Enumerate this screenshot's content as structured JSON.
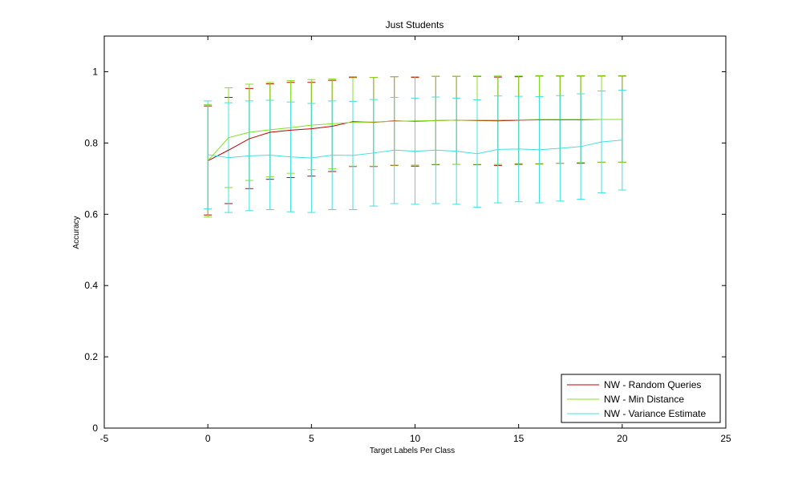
{
  "chart_data": {
    "type": "line",
    "title": "Just Students",
    "xlabel": "Target Labels Per Class",
    "ylabel": "Accuracy",
    "xlim": [
      -5,
      25
    ],
    "ylim": [
      0,
      1.1
    ],
    "xticks": [
      -5,
      0,
      5,
      10,
      15,
      20,
      25
    ],
    "yticks": [
      0,
      0.2,
      0.4,
      0.6,
      0.8,
      1
    ],
    "xtick_labels": [
      "-5",
      "0",
      "5",
      "10",
      "15",
      "20",
      "25"
    ],
    "ytick_labels": [
      "0",
      "0.2",
      "0.4",
      "0.6",
      "0.8",
      "1"
    ],
    "grid": false,
    "legend_position": "bottom-right",
    "x": [
      0,
      1,
      2,
      3,
      4,
      5,
      6,
      7,
      8,
      9,
      10,
      11,
      12,
      13,
      14,
      15,
      16,
      17,
      18,
      19,
      20
    ],
    "series": [
      {
        "name": "NW - Random Queries",
        "color": "#c00000",
        "values": [
          0.75,
          0.78,
          0.812,
          0.83,
          0.836,
          0.84,
          0.847,
          0.86,
          0.858,
          0.862,
          0.861,
          0.863,
          0.864,
          0.863,
          0.862,
          0.864,
          0.865,
          0.865,
          0.865,
          0.866,
          0.866
        ],
        "lower": [
          0.598,
          0.63,
          0.672,
          0.698,
          0.703,
          0.707,
          0.72,
          0.734,
          0.734,
          0.737,
          0.735,
          0.739,
          0.74,
          0.739,
          0.737,
          0.74,
          0.741,
          0.743,
          0.743,
          0.746,
          0.746
        ],
        "upper": [
          0.904,
          0.928,
          0.953,
          0.966,
          0.97,
          0.97,
          0.976,
          0.985,
          0.984,
          0.986,
          0.984,
          0.987,
          0.987,
          0.987,
          0.985,
          0.986,
          0.988,
          0.988,
          0.988,
          0.988,
          0.988
        ]
      },
      {
        "name": "NW - Min Distance",
        "color": "#80e020",
        "values": [
          0.75,
          0.815,
          0.83,
          0.837,
          0.843,
          0.85,
          0.854,
          0.858,
          0.859,
          0.861,
          0.862,
          0.863,
          0.864,
          0.864,
          0.864,
          0.865,
          0.866,
          0.866,
          0.866,
          0.866,
          0.866
        ],
        "lower": [
          0.592,
          0.675,
          0.695,
          0.705,
          0.715,
          0.725,
          0.728,
          0.735,
          0.735,
          0.738,
          0.738,
          0.74,
          0.74,
          0.74,
          0.74,
          0.742,
          0.742,
          0.743,
          0.745,
          0.746,
          0.746
        ],
        "upper": [
          0.908,
          0.955,
          0.965,
          0.97,
          0.975,
          0.978,
          0.98,
          0.983,
          0.984,
          0.986,
          0.986,
          0.987,
          0.987,
          0.988,
          0.988,
          0.988,
          0.989,
          0.989,
          0.989,
          0.989,
          0.989
        ]
      },
      {
        "name": "NW - Variance Estimate",
        "color": "#40e0e0",
        "values": [
          0.767,
          0.759,
          0.764,
          0.766,
          0.761,
          0.758,
          0.766,
          0.765,
          0.772,
          0.78,
          0.777,
          0.78,
          0.777,
          0.77,
          0.782,
          0.783,
          0.781,
          0.785,
          0.79,
          0.803,
          0.808
        ],
        "lower": [
          0.615,
          0.605,
          0.61,
          0.613,
          0.607,
          0.605,
          0.613,
          0.613,
          0.623,
          0.63,
          0.628,
          0.63,
          0.628,
          0.62,
          0.632,
          0.635,
          0.632,
          0.637,
          0.642,
          0.66,
          0.668
        ],
        "upper": [
          0.918,
          0.913,
          0.918,
          0.92,
          0.915,
          0.911,
          0.918,
          0.917,
          0.922,
          0.928,
          0.926,
          0.929,
          0.926,
          0.921,
          0.932,
          0.931,
          0.93,
          0.933,
          0.938,
          0.946,
          0.948
        ]
      }
    ]
  }
}
